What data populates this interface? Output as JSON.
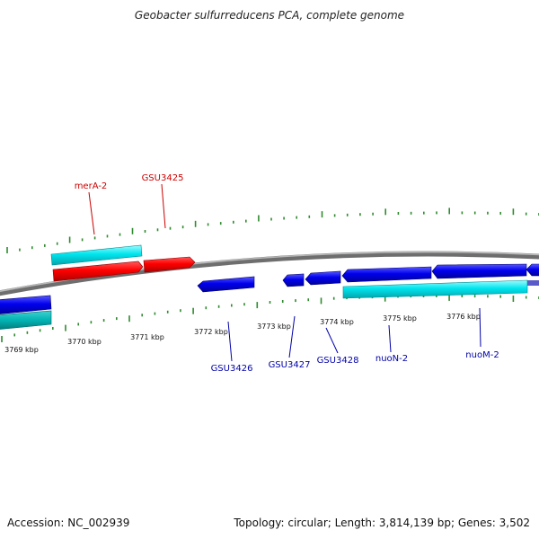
{
  "title": "Geobacter sulfurreducens PCA, complete genome",
  "footer": {
    "accession": "Accession: NC_002939",
    "summary": "Topology: circular; Length: 3,814,139 bp; Genes: 3,502"
  },
  "scale": {
    "unit": "kbp",
    "ticks": [
      "3769 kbp",
      "3770 kbp",
      "3771 kbp",
      "3772 kbp",
      "3773 kbp",
      "3774 kbp",
      "3775 kbp",
      "3776 kbp"
    ]
  },
  "colors": {
    "forward_gene": "#ff0000",
    "reverse_gene": "#0000ee",
    "feature_band": "#00e5ee",
    "backbone": "#808080",
    "tick": "#2e8b2e",
    "label_red": "#cc0000",
    "label_blue": "#0000aa"
  },
  "genes": [
    {
      "label": "merA-2",
      "strand": "forward"
    },
    {
      "label": "GSU3425",
      "strand": "forward"
    },
    {
      "label": "GSU3426",
      "strand": "reverse"
    },
    {
      "label": "GSU3427",
      "strand": "reverse"
    },
    {
      "label": "GSU3428",
      "strand": "reverse"
    },
    {
      "label": "nuoN-2",
      "strand": "reverse"
    },
    {
      "label": "nuoM-2",
      "strand": "reverse"
    }
  ]
}
